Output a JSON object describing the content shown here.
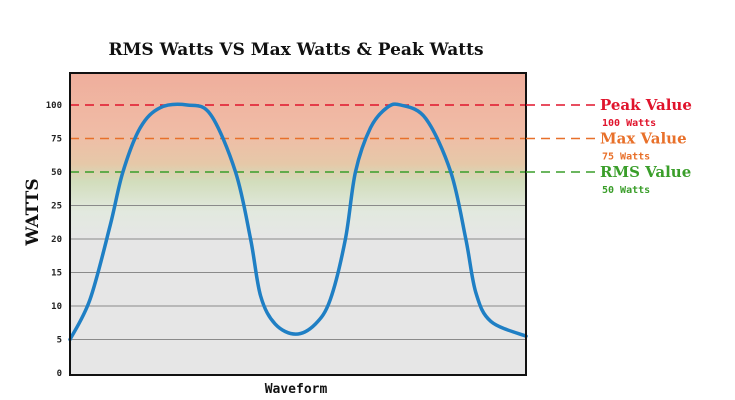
{
  "chart_data": {
    "type": "line",
    "title": "RMS Watts VS Max Watts & Peak Watts",
    "xlabel": "Waveform",
    "ylabel": "WATTS",
    "grid": true,
    "y_ticks": [
      0,
      5,
      10,
      15,
      20,
      25,
      50,
      75,
      100
    ],
    "xlim": [
      0,
      100
    ],
    "series": [
      {
        "name": "waveform",
        "color": "#1f7fc4",
        "points": [
          [
            0,
            5
          ],
          [
            4.4,
            11
          ],
          [
            8.8,
            22
          ],
          [
            11.6,
            50
          ],
          [
            15.4,
            83
          ],
          [
            19.8,
            98
          ],
          [
            25.7,
            100
          ],
          [
            30.8,
            93
          ],
          [
            36.3,
            50
          ],
          [
            39.6,
            20
          ],
          [
            41.8,
            11.5
          ],
          [
            45,
            7.3
          ],
          [
            49.5,
            5.8
          ],
          [
            53.8,
            7.3
          ],
          [
            57.1,
            11
          ],
          [
            60.4,
            20
          ],
          [
            62.6,
            50
          ],
          [
            65.9,
            83
          ],
          [
            69.5,
            98
          ],
          [
            72.5,
            100
          ],
          [
            78,
            90
          ],
          [
            83.5,
            50
          ],
          [
            86.8,
            20
          ],
          [
            89,
            12
          ],
          [
            92.3,
            7.7
          ],
          [
            100,
            5.5
          ]
        ]
      }
    ],
    "reference_lines": [
      {
        "value": 100,
        "label": "Peak Value",
        "sublabel": "100 Watts",
        "color": "#e0142c"
      },
      {
        "value": 75,
        "label": "Max Value",
        "sublabel": "75 Watts",
        "color": "#e8702a"
      },
      {
        "value": 50,
        "label": "RMS Value",
        "sublabel": "50 Watts",
        "color": "#3a9e2a"
      }
    ]
  }
}
